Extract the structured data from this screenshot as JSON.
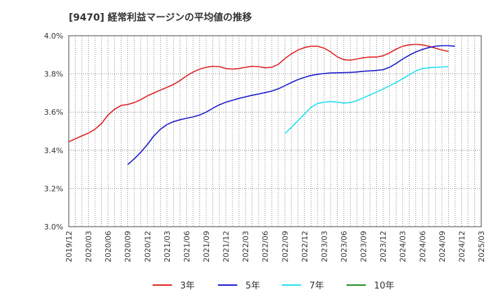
{
  "chart_data": {
    "type": "line",
    "title": "[9470]  経常利益マージンの平均値の推移",
    "xlabel": "",
    "ylabel": "",
    "x_ticks": [
      "2019/12",
      "2020/03",
      "2020/06",
      "2020/09",
      "2020/12",
      "2021/03",
      "2021/06",
      "2021/09",
      "2021/12",
      "2022/03",
      "2022/06",
      "2022/09",
      "2022/12",
      "2023/03",
      "2023/06",
      "2023/09",
      "2023/12",
      "2024/03",
      "2024/06",
      "2024/09",
      "2024/12",
      "2025/03"
    ],
    "y_ticks": [
      "3.0%",
      "3.2%",
      "3.4%",
      "3.6%",
      "3.8%",
      "4.0%"
    ],
    "ylim": [
      3.0,
      4.0
    ],
    "grid": true,
    "legend_position": "bottom",
    "series": [
      {
        "name": "3年",
        "color": "#dd2222",
        "start": "2019/12",
        "values": [
          3.445,
          3.46,
          3.475,
          3.49,
          3.51,
          3.54,
          3.585,
          3.615,
          3.635,
          3.64,
          3.65,
          3.665,
          3.685,
          3.7,
          3.715,
          3.73,
          3.745,
          3.765,
          3.79,
          3.81,
          3.825,
          3.835,
          3.84,
          3.838,
          3.828,
          3.825,
          3.828,
          3.835,
          3.84,
          3.838,
          3.832,
          3.835,
          3.85,
          3.88,
          3.905,
          3.925,
          3.938,
          3.945,
          3.945,
          3.935,
          3.915,
          3.89,
          3.875,
          3.872,
          3.878,
          3.885,
          3.888,
          3.888,
          3.895,
          3.91,
          3.93,
          3.945,
          3.952,
          3.955,
          3.952,
          3.945,
          3.935,
          3.925,
          3.918
        ]
      },
      {
        "name": "5年",
        "color": "#1a1acc",
        "start": "2020/09",
        "values": [
          3.325,
          3.355,
          3.39,
          3.43,
          3.475,
          3.51,
          3.535,
          3.55,
          3.56,
          3.568,
          3.575,
          3.585,
          3.6,
          3.62,
          3.638,
          3.652,
          3.662,
          3.672,
          3.68,
          3.688,
          3.695,
          3.702,
          3.71,
          3.722,
          3.738,
          3.755,
          3.77,
          3.782,
          3.792,
          3.798,
          3.802,
          3.805,
          3.806,
          3.807,
          3.808,
          3.81,
          3.814,
          3.816,
          3.818,
          3.822,
          3.835,
          3.855,
          3.878,
          3.898,
          3.915,
          3.928,
          3.938,
          3.945,
          3.948,
          3.948,
          3.945
        ]
      },
      {
        "name": "7年",
        "color": "#22e0f0",
        "start": "2022/09",
        "values": [
          3.488,
          3.52,
          3.555,
          3.59,
          3.625,
          3.645,
          3.652,
          3.655,
          3.652,
          3.648,
          3.65,
          3.66,
          3.675,
          3.69,
          3.705,
          3.72,
          3.738,
          3.755,
          3.775,
          3.795,
          3.815,
          3.828,
          3.832,
          3.835,
          3.836,
          3.838
        ]
      },
      {
        "name": "10年",
        "color": "#228b22",
        "start": "2019/12",
        "values": []
      }
    ]
  }
}
